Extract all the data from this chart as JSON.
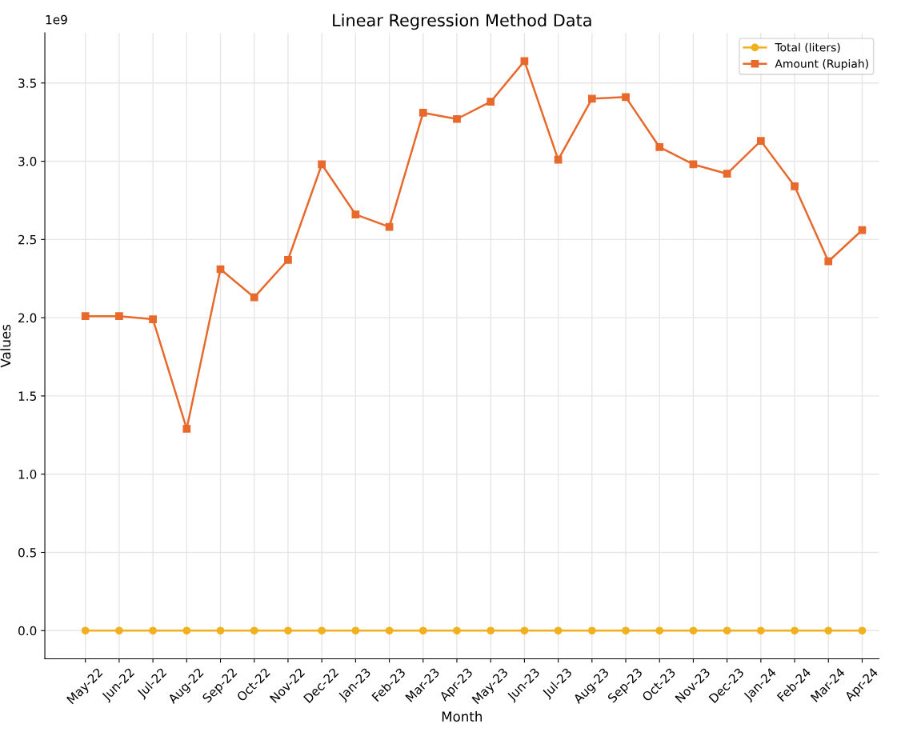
{
  "chart_data": {
    "type": "line",
    "title": "Linear Regression Method Data",
    "xlabel": "Month",
    "ylabel": "Values",
    "annotations": [
      "1e9"
    ],
    "categories": [
      "May-22",
      "Jun-22",
      "Jul-22",
      "Aug-22",
      "Sep-22",
      "Oct-22",
      "Nov-22",
      "Dec-22",
      "Jan-23",
      "Feb-23",
      "Mar-23",
      "Apr-23",
      "May-23",
      "Jun-23",
      "Jul-23",
      "Aug-23",
      "Sep-23",
      "Oct-23",
      "Nov-23",
      "Dec-23",
      "Jan-24",
      "Feb-24",
      "Mar-24",
      "Apr-24"
    ],
    "series": [
      {
        "name": "Total (liters)",
        "color": "#f2b01e",
        "marker": "circle",
        "values": [
          0,
          0,
          0,
          0,
          0,
          0,
          0,
          0,
          0,
          0,
          0,
          0,
          0,
          0,
          0,
          0,
          0,
          0,
          0,
          0,
          0,
          0,
          0,
          0
        ]
      },
      {
        "name": "Amount (Rupiah)",
        "color": "#e8692c",
        "marker": "square",
        "values": [
          2.01,
          2.01,
          1.99,
          1.29,
          2.31,
          2.13,
          2.37,
          2.98,
          2.66,
          2.58,
          3.31,
          3.27,
          3.38,
          3.64,
          3.01,
          3.4,
          3.41,
          3.09,
          2.98,
          2.92,
          3.13,
          2.84,
          2.36,
          2.56
        ]
      }
    ],
    "ylim": [
      -0.18,
      3.82
    ],
    "yticks": [
      {
        "value": 0,
        "label": "0.0"
      },
      0.5,
      {
        "value": 1,
        "label": "1.0"
      },
      1.5,
      {
        "value": 2,
        "label": "2.0"
      },
      2.5,
      {
        "value": 3,
        "label": "3.0"
      },
      3.5
    ],
    "grid": true,
    "legend": "top right",
    "line_style": "solid"
  }
}
